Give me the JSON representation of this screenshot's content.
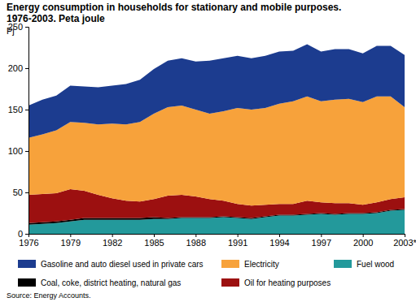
{
  "chart_data": {
    "type": "area",
    "stacked": true,
    "grid": false,
    "title": "Energy consumption in households for stationary and mobile purposes.",
    "subtitle": "1976-2003. Peta joule",
    "ylabel": "Pj",
    "source": "Source: Energy Accounts.",
    "x": [
      1976,
      1977,
      1978,
      1979,
      1980,
      1981,
      1982,
      1983,
      1984,
      1985,
      1986,
      1987,
      1988,
      1989,
      1990,
      1991,
      1992,
      1993,
      1994,
      1995,
      1996,
      1997,
      1998,
      1999,
      2000,
      2001,
      2002,
      2003
    ],
    "xlim": [
      1976,
      2003
    ],
    "xticks": [
      1976,
      1979,
      1982,
      1985,
      1988,
      1991,
      1994,
      1997,
      2000,
      {
        "value": 2003,
        "label": "2003*"
      }
    ],
    "ylim": [
      0,
      250
    ],
    "yticks": [
      0,
      50,
      100,
      150,
      200,
      250
    ],
    "series": [
      {
        "name": "Fuel wood",
        "color": "#23999b",
        "values": [
          11,
          12,
          13,
          15,
          17,
          17,
          17,
          17,
          17,
          18,
          18,
          19,
          19,
          19,
          20,
          19,
          18,
          20,
          22,
          22,
          23,
          24,
          23,
          24,
          24,
          25,
          28,
          29
        ]
      },
      {
        "name": "Coal, coke, district heating, natural gas",
        "color": "#000000",
        "values": [
          2,
          2,
          2,
          2,
          2,
          2,
          2,
          2,
          2,
          2,
          1,
          1,
          1,
          1,
          1,
          1,
          1,
          1,
          1,
          1,
          1,
          1,
          1,
          1,
          1,
          1,
          1,
          1
        ]
      },
      {
        "name": "Oil for heating purposes",
        "color": "#9c1010",
        "values": [
          34,
          34,
          34,
          37,
          33,
          28,
          24,
          21,
          20,
          22,
          27,
          27,
          25,
          22,
          19,
          16,
          15,
          14,
          13,
          13,
          16,
          13,
          13,
          12,
          10,
          12,
          13,
          14
        ]
      },
      {
        "name": "Electricity",
        "color": "#f7a23b",
        "values": [
          69,
          72,
          76,
          81,
          82,
          85,
          90,
          92,
          96,
          103,
          107,
          108,
          105,
          103,
          108,
          116,
          116,
          117,
          121,
          124,
          126,
          122,
          125,
          126,
          124,
          128,
          124,
          109
        ]
      },
      {
        "name": "Gasoline and auto diesel used in private cars",
        "color": "#1c3c8f",
        "values": [
          39,
          42,
          42,
          44,
          44,
          45,
          46,
          49,
          51,
          54,
          56,
          57,
          58,
          64,
          64,
          63,
          62,
          63,
          63,
          61,
          63,
          60,
          61,
          60,
          59,
          61,
          61,
          63
        ]
      }
    ]
  }
}
